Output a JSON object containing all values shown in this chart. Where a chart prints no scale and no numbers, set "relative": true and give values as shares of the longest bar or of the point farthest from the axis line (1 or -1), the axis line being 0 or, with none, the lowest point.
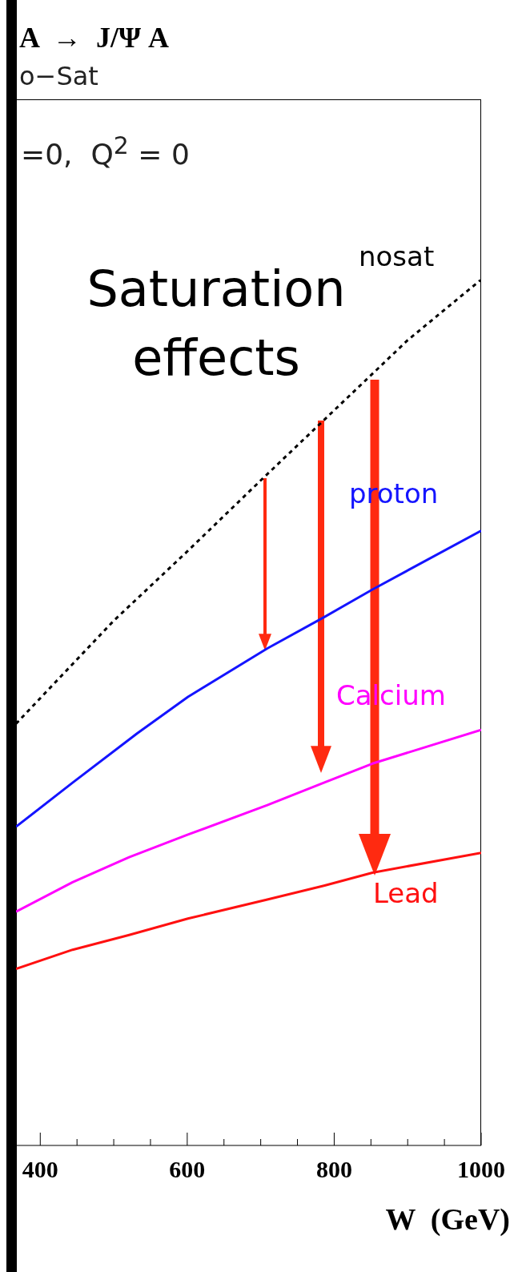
{
  "chart_data": {
    "type": "line",
    "title": "A  →  J/Ψ A",
    "subtitle": "o−Sat",
    "xlabel": "W  (GeV)",
    "annotations": [
      "=0,  Q$^{2}$ = 0",
      "Saturation effects"
    ],
    "relative": true,
    "xlim": [
      367,
      1000
    ],
    "xticks": [
      400,
      {
        "value": 450,
        "label": null
      },
      {
        "value": 500,
        "label": null
      },
      {
        "value": 550,
        "label": null
      },
      600,
      {
        "value": 650,
        "label": null
      },
      {
        "value": 700,
        "label": null
      },
      {
        "value": 750,
        "label": null
      },
      800,
      {
        "value": 850,
        "label": null
      },
      {
        "value": 900,
        "label": null
      },
      {
        "value": 950,
        "label": null
      },
      1000
    ],
    "marker": "none",
    "series": [
      {
        "name": "nosat",
        "color": "#000000",
        "line_style": "dotted",
        "x": [
          367,
          500,
          600,
          700,
          800,
          900,
          1000
        ],
        "values": [
          0.487,
          0.606,
          0.686,
          0.768,
          0.849,
          0.93,
          1.0
        ]
      },
      {
        "name": "proton",
        "color": "#1414ff",
        "line_style": "solid",
        "x": [
          367,
          444,
          532,
          601,
          709,
          786,
          852,
          1000
        ],
        "values": [
          0.368,
          0.419,
          0.476,
          0.518,
          0.574,
          0.61,
          0.642,
          0.71
        ]
      },
      {
        "name": "Calcium",
        "color": "#ff00ff",
        "line_style": "solid",
        "x": [
          367,
          444,
          521,
          601,
          709,
          786,
          852,
          1000
        ],
        "values": [
          0.27,
          0.304,
          0.333,
          0.359,
          0.393,
          0.419,
          0.441,
          0.48
        ]
      },
      {
        "name": "Lead",
        "color": "#ff1010",
        "line_style": "solid",
        "x": [
          367,
          444,
          521,
          601,
          709,
          786,
          852,
          1000
        ],
        "values": [
          0.204,
          0.226,
          0.243,
          0.262,
          0.284,
          0.3,
          0.315,
          0.338
        ]
      }
    ]
  }
}
